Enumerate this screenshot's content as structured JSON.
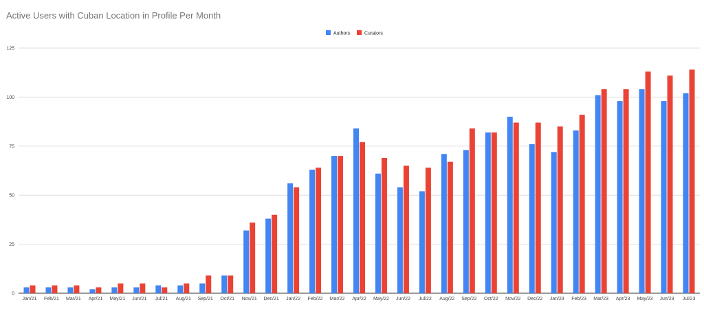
{
  "chart_data": {
    "type": "bar",
    "title": "Active Users with Cuban Location in Profile Per Month",
    "xlabel": "",
    "ylabel": "",
    "ylim": [
      0,
      125
    ],
    "yticks": [
      "0",
      "25",
      "50",
      "75",
      "100",
      "125"
    ],
    "grid": true,
    "legend_position": "top-center",
    "categories": [
      "Jan/21",
      "Feb/21",
      "Mar/21",
      "Apr/21",
      "May/21",
      "Jun/21",
      "Jul/21",
      "Aug/21",
      "Sep/21",
      "Oct/21",
      "Nov/21",
      "Dec/21",
      "Jan/22",
      "Feb/22",
      "Mar/22",
      "Apr/22",
      "May/22",
      "Jun/22",
      "Jul/22",
      "Aug/22",
      "Sep/22",
      "Oct/22",
      "Nov/22",
      "Dec/22",
      "Jan/23",
      "Feb/23",
      "Mar/23",
      "Apr/23",
      "May/23",
      "Jun/23",
      "Jul/23"
    ],
    "series": [
      {
        "name": "Authors",
        "color": "#4285f4",
        "values": [
          3,
          3,
          3,
          2,
          3,
          3,
          4,
          4,
          5,
          9,
          32,
          38,
          56,
          63,
          70,
          84,
          61,
          54,
          52,
          71,
          73,
          82,
          90,
          76,
          72,
          83,
          101,
          98,
          104,
          98,
          102
        ]
      },
      {
        "name": "Curators",
        "color": "#ea4335",
        "values": [
          4,
          4,
          4,
          3,
          5,
          5,
          3,
          5,
          9,
          9,
          36,
          40,
          54,
          64,
          70,
          77,
          69,
          65,
          64,
          67,
          84,
          82,
          87,
          87,
          85,
          91,
          104,
          104,
          113,
          111,
          114
        ]
      }
    ]
  }
}
